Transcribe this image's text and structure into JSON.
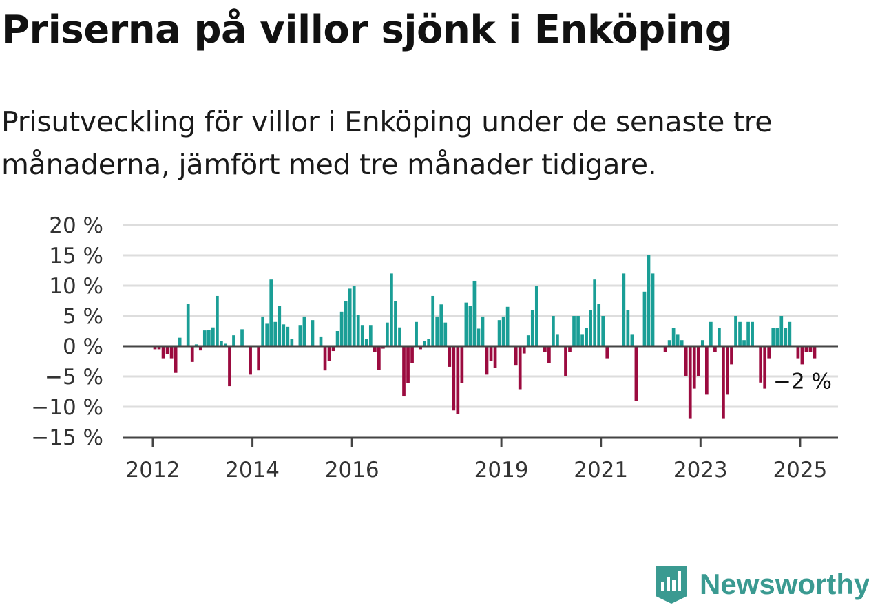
{
  "header": {
    "title": "Priserna på villor sjönk i Enköping",
    "subtitle": "Prisutveckling för villor i Enköping under de senaste tre månaderna, jämfört med tre månader tidigare."
  },
  "brand": {
    "name": "Newsworthy",
    "icon": "newsworthy-logo-icon",
    "color": "#3a9a91"
  },
  "chart_data": {
    "type": "bar",
    "title": "Priserna på villor sjönk i Enköping",
    "subtitle": "Prisutveckling för villor i Enköping under de senaste tre månaderna, jämfört med tre månader tidigare.",
    "unit": "%",
    "ylim": [
      -15,
      20
    ],
    "yticks": [
      {
        "value": 20,
        "label": "20 %"
      },
      {
        "value": 15,
        "label": "15 %"
      },
      {
        "value": 10,
        "label": "10 %"
      },
      {
        "value": 5,
        "label": "5 %"
      },
      {
        "value": 0,
        "label": "0 %"
      },
      {
        "value": -5,
        "label": "−5 %"
      },
      {
        "value": -10,
        "label": "−10 %"
      },
      {
        "value": -15,
        "label": "−15 %"
      }
    ],
    "xticks": [
      {
        "year": 2012,
        "label": "2012"
      },
      {
        "year": 2014,
        "label": "2014"
      },
      {
        "year": 2016,
        "label": "2016"
      },
      {
        "year": 2019,
        "label": "2019"
      },
      {
        "year": 2021,
        "label": "2021"
      },
      {
        "year": 2023,
        "label": "2023"
      },
      {
        "year": 2025,
        "label": "2025"
      }
    ],
    "grid": true,
    "colors": {
      "positive": "#1a9e96",
      "negative": "#9b0b3f",
      "grid": "#dddddd",
      "axis": "#444444"
    },
    "annotation": {
      "label": "−2 %"
    },
    "start_year": 2012,
    "start_month": 1,
    "values": [
      -0.5,
      -0.5,
      -2,
      -1.3,
      -2,
      -4.4,
      1.4,
      0,
      7,
      -2.6,
      0.3,
      -0.7,
      2.6,
      2.7,
      3.1,
      8.3,
      0.9,
      0.4,
      -6.6,
      1.8,
      0,
      2.8,
      0,
      -4.7,
      0,
      -4,
      4.9,
      3.7,
      11,
      4,
      6.6,
      3.6,
      3.2,
      1.2,
      0,
      3.5,
      4.9,
      0,
      4.3,
      0,
      1.6,
      -4,
      -2.4,
      -0.8,
      2.5,
      5.7,
      7.4,
      9.5,
      10,
      5.2,
      3.5,
      1.2,
      3.5,
      -1,
      -3.9,
      -0.4,
      3.9,
      12,
      7.4,
      3.1,
      -8.3,
      -6.1,
      -2.8,
      4,
      -0.5,
      0.9,
      1.2,
      8.3,
      4.9,
      6.9,
      3.9,
      -3.4,
      -10.6,
      -11.2,
      -6.1,
      7.2,
      6.7,
      10.8,
      2.9,
      4.9,
      -4.7,
      -2.5,
      -3.6,
      4.3,
      4.9,
      6.5,
      0,
      -3.2,
      -7.1,
      -1.2,
      1.8,
      6,
      10,
      0,
      -1,
      -2.8,
      5,
      2,
      0,
      -5,
      -1,
      5,
      5,
      2,
      3,
      6,
      11,
      7,
      5,
      -2,
      0,
      0,
      0,
      12,
      6,
      2,
      -9,
      0,
      9,
      15,
      12,
      0,
      0,
      -1,
      1,
      3,
      2,
      1,
      -5,
      -12,
      -7,
      -5,
      1,
      -8,
      4,
      -1,
      3,
      -12,
      -8,
      -3,
      5,
      4,
      1,
      4,
      4,
      0,
      -6,
      -7,
      -2,
      3,
      3,
      5,
      3,
      4,
      0,
      -2,
      -3,
      -1,
      -1,
      -2
    ]
  }
}
